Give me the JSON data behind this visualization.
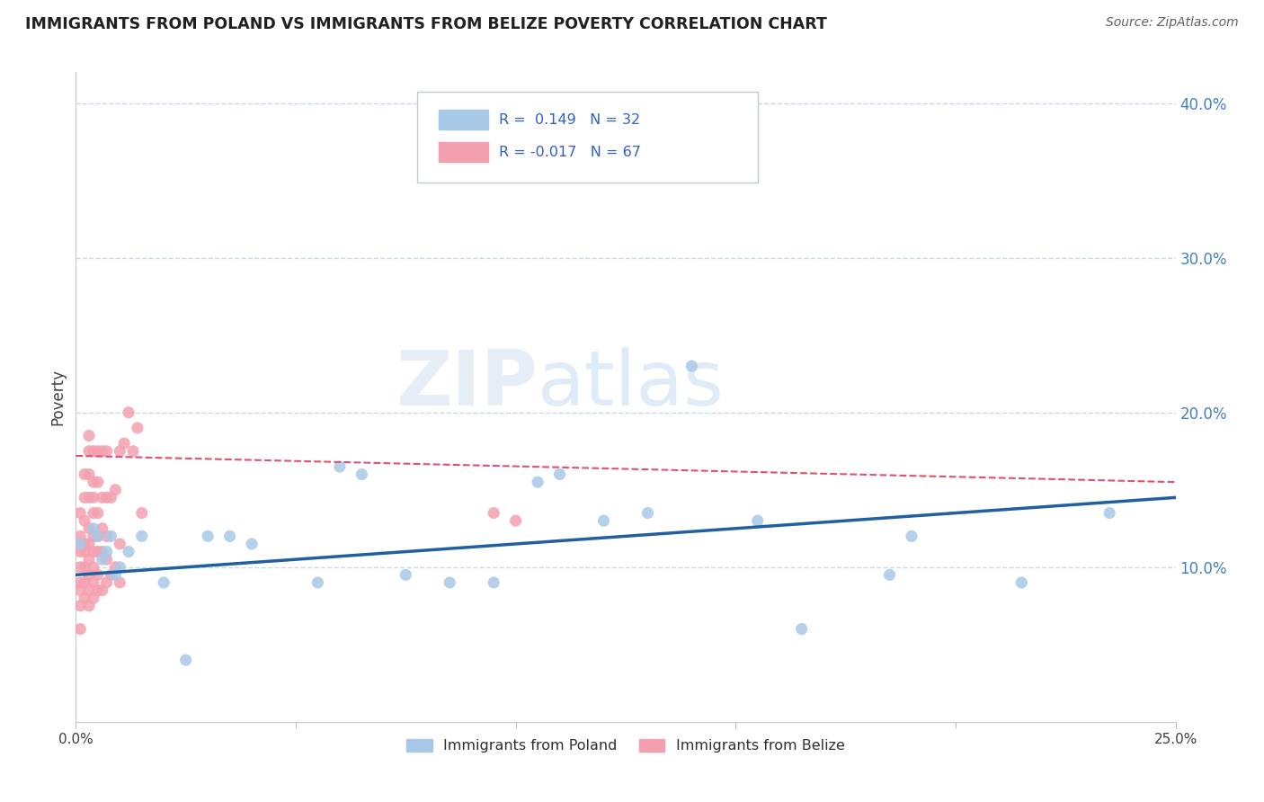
{
  "title": "IMMIGRANTS FROM POLAND VS IMMIGRANTS FROM BELIZE POVERTY CORRELATION CHART",
  "source": "Source: ZipAtlas.com",
  "ylabel": "Poverty",
  "xlim": [
    0.0,
    0.25
  ],
  "ylim": [
    0.0,
    0.42
  ],
  "x_ticks": [
    0.0,
    0.05,
    0.1,
    0.15,
    0.2,
    0.25
  ],
  "x_tick_labels": [
    "0.0%",
    "",
    "",
    "",
    "",
    "25.0%"
  ],
  "y_ticks_right": [
    0.1,
    0.2,
    0.3,
    0.4
  ],
  "y_tick_labels_right": [
    "10.0%",
    "20.0%",
    "30.0%",
    "40.0%"
  ],
  "poland_color": "#a8c8e8",
  "belize_color": "#f4a0b0",
  "poland_line_color": "#2060a0",
  "belize_line_color": "#e05070",
  "poland_R": 0.149,
  "poland_N": 32,
  "belize_R": -0.017,
  "belize_N": 67,
  "legend_text_color": "#3060c0",
  "background_color": "#ffffff",
  "grid_color": "#c8d8e8",
  "title_color": "#202020",
  "watermark_color": "#c8daea",
  "poland_x": [
    0.001,
    0.004,
    0.005,
    0.006,
    0.007,
    0.008,
    0.009,
    0.01,
    0.012,
    0.015,
    0.02,
    0.025,
    0.03,
    0.035,
    0.04,
    0.055,
    0.06,
    0.065,
    0.075,
    0.085,
    0.095,
    0.105,
    0.11,
    0.12,
    0.13,
    0.14,
    0.155,
    0.165,
    0.185,
    0.19,
    0.215,
    0.235
  ],
  "poland_y": [
    0.115,
    0.125,
    0.12,
    0.105,
    0.11,
    0.12,
    0.095,
    0.1,
    0.11,
    0.12,
    0.09,
    0.04,
    0.12,
    0.12,
    0.115,
    0.09,
    0.165,
    0.16,
    0.095,
    0.09,
    0.09,
    0.155,
    0.16,
    0.13,
    0.135,
    0.23,
    0.13,
    0.06,
    0.095,
    0.12,
    0.09,
    0.135
  ],
  "belize_x": [
    0.001,
    0.001,
    0.001,
    0.001,
    0.001,
    0.001,
    0.001,
    0.001,
    0.001,
    0.002,
    0.002,
    0.002,
    0.002,
    0.002,
    0.002,
    0.002,
    0.002,
    0.003,
    0.003,
    0.003,
    0.003,
    0.003,
    0.003,
    0.003,
    0.003,
    0.003,
    0.003,
    0.004,
    0.004,
    0.004,
    0.004,
    0.004,
    0.004,
    0.004,
    0.004,
    0.004,
    0.005,
    0.005,
    0.005,
    0.005,
    0.005,
    0.005,
    0.005,
    0.006,
    0.006,
    0.006,
    0.006,
    0.006,
    0.007,
    0.007,
    0.007,
    0.007,
    0.007,
    0.008,
    0.008,
    0.009,
    0.009,
    0.01,
    0.01,
    0.01,
    0.011,
    0.012,
    0.013,
    0.014,
    0.015,
    0.095,
    0.1
  ],
  "belize_y": [
    0.06,
    0.075,
    0.085,
    0.09,
    0.1,
    0.11,
    0.115,
    0.12,
    0.135,
    0.08,
    0.09,
    0.1,
    0.11,
    0.115,
    0.13,
    0.145,
    0.16,
    0.075,
    0.085,
    0.095,
    0.105,
    0.115,
    0.125,
    0.145,
    0.16,
    0.175,
    0.185,
    0.08,
    0.09,
    0.1,
    0.11,
    0.12,
    0.135,
    0.145,
    0.155,
    0.175,
    0.085,
    0.095,
    0.11,
    0.12,
    0.135,
    0.155,
    0.175,
    0.085,
    0.11,
    0.125,
    0.145,
    0.175,
    0.09,
    0.105,
    0.12,
    0.145,
    0.175,
    0.095,
    0.145,
    0.1,
    0.15,
    0.09,
    0.115,
    0.175,
    0.18,
    0.2,
    0.175,
    0.19,
    0.135,
    0.135,
    0.13
  ],
  "poland_trend_x": [
    0.0,
    0.25
  ],
  "poland_trend_y": [
    0.095,
    0.145
  ],
  "belize_trend_x": [
    0.0,
    0.25
  ],
  "belize_trend_y": [
    0.172,
    0.155
  ]
}
